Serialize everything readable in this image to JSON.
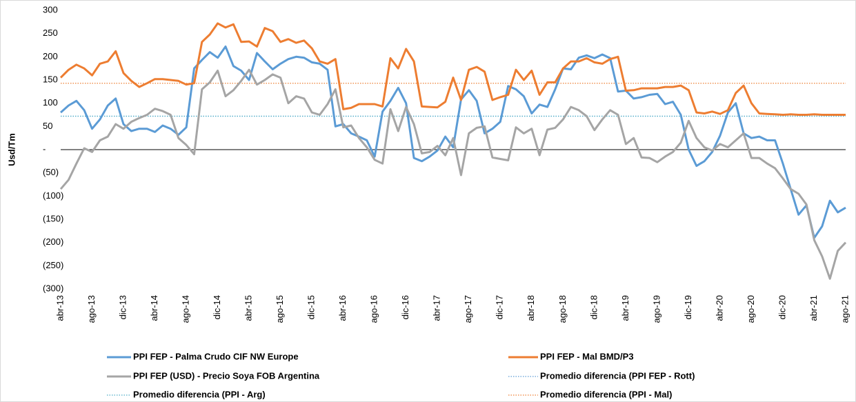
{
  "chart_data": {
    "type": "line",
    "y_label": "Usd/Tm",
    "categories": [
      "abr-13",
      null,
      null,
      null,
      "ago-13",
      null,
      null,
      null,
      "dic-13",
      null,
      null,
      null,
      "abr-14",
      null,
      null,
      null,
      "ago-14",
      null,
      null,
      null,
      "dic-14",
      null,
      null,
      null,
      "abr-15",
      null,
      null,
      null,
      "ago-15",
      null,
      null,
      null,
      "dic-15",
      null,
      null,
      null,
      "abr-16",
      null,
      null,
      null,
      "ago-16",
      null,
      null,
      null,
      "dic-16",
      null,
      null,
      null,
      "abr-17",
      null,
      null,
      null,
      "ago-17",
      null,
      null,
      null,
      "dic-17",
      null,
      null,
      null,
      "abr-18",
      null,
      null,
      null,
      "ago-18",
      null,
      null,
      null,
      "dic-18",
      null,
      null,
      null,
      "abr-19",
      null,
      null,
      null,
      "ago-19",
      null,
      null,
      null,
      "dic-19",
      null,
      null,
      null,
      "abr-20",
      null,
      null,
      null,
      "ago-20",
      null,
      null,
      null,
      "dic-20",
      null,
      null,
      null,
      "abr-21",
      null,
      null,
      null,
      "ago-21"
    ],
    "series": [
      {
        "name": "PPI FEP - Palma Crudo CIF NW Europe",
        "color": "#5b9bd5",
        "values": [
          80,
          95,
          105,
          85,
          45,
          65,
          95,
          110,
          55,
          40,
          45,
          45,
          38,
          52,
          45,
          32,
          48,
          175,
          193,
          210,
          198,
          222,
          180,
          170,
          150,
          208,
          190,
          173,
          185,
          195,
          200,
          198,
          188,
          185,
          172,
          50,
          55,
          35,
          28,
          20,
          -15,
          82,
          105,
          133,
          100,
          -18,
          -25,
          -15,
          -2,
          28,
          5,
          108,
          128,
          105,
          35,
          45,
          60,
          137,
          130,
          115,
          78,
          97,
          92,
          130,
          175,
          173,
          198,
          203,
          197,
          205,
          197,
          125,
          127,
          110,
          113,
          118,
          120,
          98,
          103,
          75,
          0,
          -35,
          -25,
          -5,
          30,
          80,
          100,
          35,
          25,
          28,
          20,
          20,
          -30,
          -85,
          -140,
          -120,
          -190,
          -165,
          -110,
          -135,
          -125
        ]
      },
      {
        "name": "PPI FEP - Mal BMD/P3",
        "color": "#ed7d31",
        "values": [
          155,
          172,
          183,
          175,
          160,
          185,
          190,
          212,
          165,
          148,
          135,
          143,
          152,
          152,
          150,
          148,
          140,
          143,
          232,
          248,
          272,
          263,
          270,
          232,
          233,
          222,
          262,
          255,
          232,
          238,
          230,
          235,
          218,
          190,
          185,
          195,
          87,
          90,
          98,
          98,
          98,
          93,
          197,
          175,
          217,
          190,
          93,
          92,
          91,
          103,
          155,
          107,
          172,
          178,
          168,
          107,
          113,
          118,
          172,
          150,
          170,
          118,
          145,
          145,
          175,
          190,
          190,
          197,
          188,
          185,
          195,
          200,
          127,
          128,
          132,
          132,
          132,
          135,
          135,
          138,
          128,
          80,
          78,
          82,
          77,
          85,
          122,
          138,
          100,
          78,
          77,
          76,
          75,
          76,
          75,
          75,
          76,
          75,
          75,
          75,
          75
        ]
      },
      {
        "name": "PPI FEP (USD) - Precio Soya FOB Argentina",
        "color": "#a5a5a5",
        "values": [
          -85,
          -65,
          -30,
          3,
          -5,
          20,
          28,
          55,
          45,
          60,
          68,
          75,
          88,
          83,
          75,
          25,
          10,
          -10,
          130,
          145,
          170,
          115,
          128,
          148,
          172,
          140,
          150,
          162,
          155,
          100,
          115,
          110,
          80,
          75,
          98,
          130,
          48,
          52,
          25,
          5,
          -22,
          -30,
          87,
          40,
          92,
          55,
          -8,
          -5,
          8,
          -12,
          25,
          -55,
          35,
          47,
          50,
          -17,
          -20,
          -23,
          48,
          35,
          45,
          -12,
          43,
          47,
          65,
          92,
          85,
          72,
          42,
          65,
          85,
          75,
          12,
          25,
          -17,
          -18,
          -27,
          -15,
          -5,
          15,
          62,
          25,
          5,
          -2,
          12,
          5,
          20,
          35,
          -18,
          -18,
          -30,
          -40,
          -62,
          -85,
          -95,
          -118,
          -195,
          -230,
          -278,
          -218,
          -200
        ]
      }
    ],
    "reference_lines": [
      {
        "name": "Promedio diferencia (PPI FEP - Rott)",
        "color": "#5b9bd5",
        "value": 72
      },
      {
        "name": "Promedio diferencia (PPI - Arg)",
        "color": "#4bacc6",
        "value": 72
      },
      {
        "name": "Promedio diferencia (PPI - Mal)",
        "color": "#ed7d31",
        "value": 143
      }
    ],
    "ylim": [
      -300,
      300
    ],
    "yticks": [
      {
        "value": -300,
        "label": "(300)"
      },
      {
        "value": -250,
        "label": "(250)"
      },
      {
        "value": -200,
        "label": "(200)"
      },
      {
        "value": -150,
        "label": "(150)"
      },
      {
        "value": -100,
        "label": "(100)"
      },
      {
        "value": -50,
        "label": "(50)"
      },
      {
        "value": 0,
        "label": "-"
      },
      50,
      100,
      150,
      200,
      250,
      300
    ],
    "grid": false
  }
}
